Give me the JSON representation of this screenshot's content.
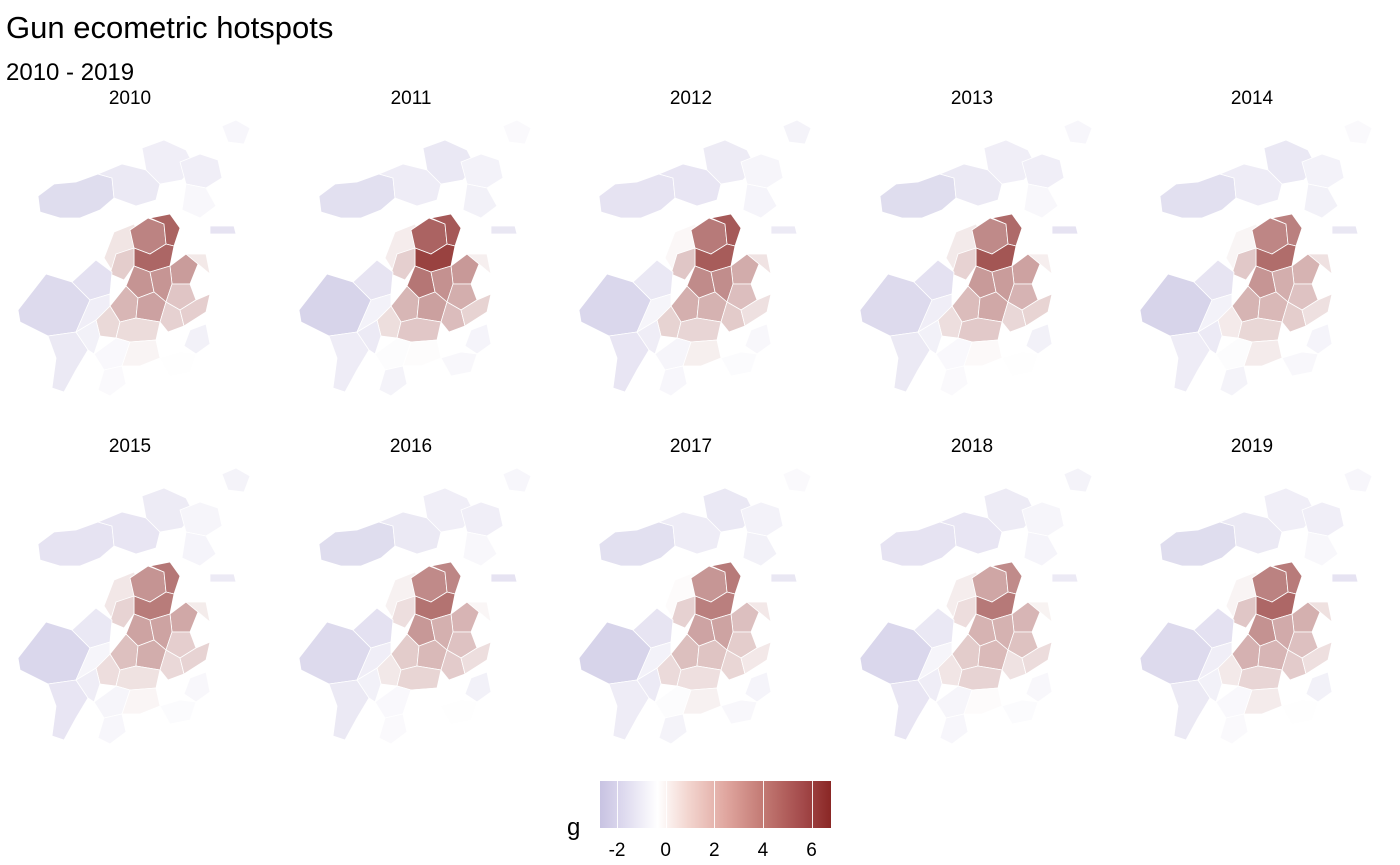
{
  "title": "Gun ecometric hotspots",
  "subtitle": "2010 - 2019",
  "panels": [
    {
      "year": "2010",
      "intensity": 6.0
    },
    {
      "year": "2011",
      "intensity": 6.8
    },
    {
      "year": "2012",
      "intensity": 6.2
    },
    {
      "year": "2013",
      "intensity": 5.9
    },
    {
      "year": "2014",
      "intensity": 5.4
    },
    {
      "year": "2015",
      "intensity": 5.2
    },
    {
      "year": "2016",
      "intensity": 5.0
    },
    {
      "year": "2017",
      "intensity": 4.9
    },
    {
      "year": "2018",
      "intensity": 4.6
    },
    {
      "year": "2019",
      "intensity": 5.6
    }
  ],
  "legend": {
    "title": "g",
    "min": -2.7,
    "max": 6.8,
    "ticks": [
      "-2",
      "0",
      "2",
      "4",
      "6"
    ],
    "colors": {
      "low": "#c8c3e2",
      "mid": "#ffffff",
      "high": "#8a2725"
    }
  }
}
